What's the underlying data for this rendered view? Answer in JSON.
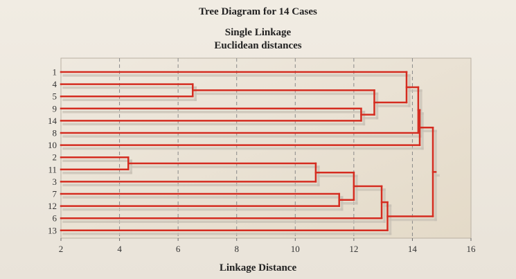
{
  "chart_data": {
    "type": "dendrogram",
    "title": "Tree Diagram for 14 Cases",
    "subtitle_lines": [
      "Single Linkage",
      "Euclidean distances"
    ],
    "xlabel": "Linkage Distance",
    "xlim": [
      2,
      16
    ],
    "xticks": [
      2,
      4,
      6,
      8,
      10,
      12,
      14,
      16
    ],
    "vertical_grid_at": [
      4,
      6,
      8,
      10,
      12,
      14
    ],
    "leaves": [
      "1",
      "4",
      "5",
      "9",
      "14",
      "8",
      "10",
      "2",
      "11",
      "3",
      "7",
      "12",
      "6",
      "13"
    ],
    "merges": [
      {
        "a": "2",
        "b": "11",
        "height": 4.3
      },
      {
        "a": "4",
        "b": "5",
        "height": 6.5
      },
      {
        "a": "3",
        "b": "[2,11]",
        "height": 10.7
      },
      {
        "a": "7",
        "b": "12",
        "height": 11.5
      },
      {
        "a": "[3,2,11]",
        "b": "[7,12]",
        "height": 12.0
      },
      {
        "a": "9",
        "b": "14",
        "height": 12.25
      },
      {
        "a": "[4,5]",
        "b": "[9,14]",
        "height": 12.7
      },
      {
        "a": "1",
        "b": "[4,5,9,14]",
        "height": 13.8
      },
      {
        "a": "[3,2,11,7,12]",
        "b": "6",
        "height": 12.95
      },
      {
        "a": "[3,2,11,7,12,6]",
        "b": "13",
        "height": 13.15
      },
      {
        "a": "[1,4,5,9,14]",
        "b": "8",
        "height": 14.2
      },
      {
        "a": "[1,4,5,9,14,8]",
        "b": "10",
        "height": 14.25
      },
      {
        "a": "[1,4,5,9,14,8,10]",
        "b": "[3,2,11,7,12,6,13]",
        "height": 14.7
      }
    ],
    "colors": {
      "line": "#d42c20",
      "shadow": "#c9c2b6",
      "plot_background": "#ece4d4",
      "grid": "#888888"
    }
  }
}
